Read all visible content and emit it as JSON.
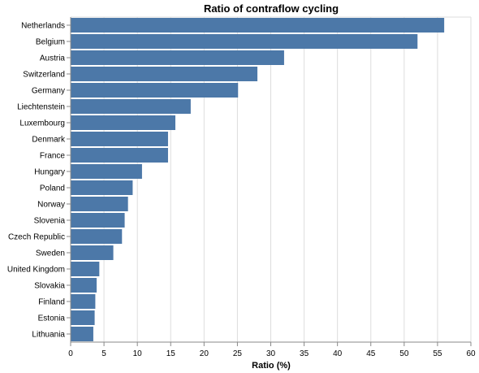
{
  "chart_data": {
    "type": "bar",
    "orientation": "horizontal",
    "title": "Ratio of contraflow cycling",
    "xlabel": "Ratio (%)",
    "ylabel": "",
    "xlim": [
      0,
      60
    ],
    "x_ticks": [
      0,
      5,
      10,
      15,
      20,
      25,
      30,
      35,
      40,
      45,
      50,
      55,
      60
    ],
    "grid": true,
    "bar_color": "#4c78a8",
    "categories": [
      "Netherlands",
      "Belgium",
      "Austria",
      "Switzerland",
      "Germany",
      "Liechtenstein",
      "Luxembourg",
      "Denmark",
      "France",
      "Hungary",
      "Poland",
      "Norway",
      "Slovenia",
      "Czech Republic",
      "Sweden",
      "United Kingdom",
      "Slovakia",
      "Finland",
      "Estonia",
      "Lithuania"
    ],
    "values": [
      56,
      52,
      32,
      28,
      25.1,
      18,
      15.7,
      14.6,
      14.6,
      10.7,
      9.3,
      8.6,
      8.1,
      7.7,
      6.4,
      4.3,
      3.9,
      3.7,
      3.6,
      3.4
    ]
  }
}
